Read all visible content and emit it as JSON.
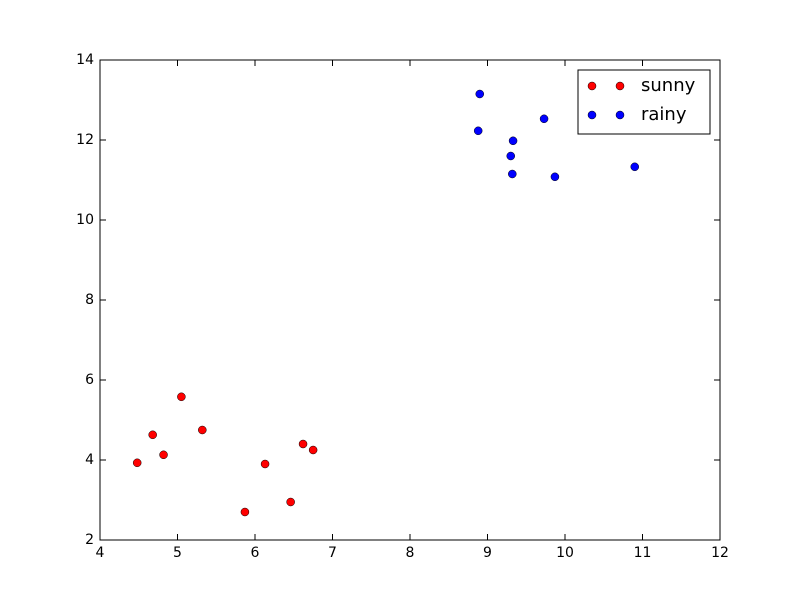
{
  "chart_data": {
    "type": "scatter",
    "series": [
      {
        "name": "sunny",
        "color": "#ff0000",
        "x": [
          4.48,
          4.68,
          4.82,
          5.05,
          5.32,
          5.87,
          6.13,
          6.46,
          6.62,
          6.75
        ],
        "values": [
          3.93,
          4.63,
          4.13,
          5.58,
          4.75,
          2.7,
          3.9,
          2.95,
          4.4,
          4.25
        ]
      },
      {
        "name": "rainy",
        "color": "#0000ff",
        "x": [
          8.9,
          8.88,
          9.33,
          9.3,
          9.32,
          9.73,
          9.87,
          10.9
        ],
        "values": [
          13.15,
          12.23,
          11.98,
          11.6,
          11.15,
          12.53,
          11.08,
          11.33
        ]
      }
    ],
    "xlim": [
      4,
      12
    ],
    "xticks": [
      4,
      5,
      6,
      7,
      8,
      9,
      10,
      11,
      12
    ],
    "ylim": [
      2,
      14
    ],
    "yticks": [
      2,
      4,
      6,
      8,
      10,
      12,
      14
    ],
    "legend": "upper right"
  }
}
